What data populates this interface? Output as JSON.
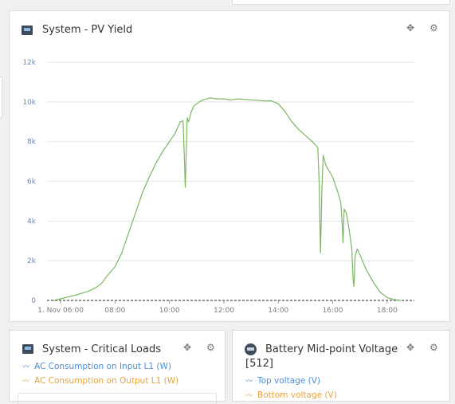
{
  "panels": {
    "pv_yield": {
      "title": "System - PV Yield"
    },
    "critical_loads": {
      "title": "System - Critical Loads",
      "legend": [
        {
          "label": "AC Consumption on Input L1 (W)",
          "color": "#4a90d9"
        },
        {
          "label": "AC Consumption on Output L1 (W)",
          "color": "#e8a33b"
        }
      ]
    },
    "battery_midpoint": {
      "title": "Battery Mid-point Voltage",
      "subtitle": "[512]",
      "legend": [
        {
          "label": "Top voltage (V)",
          "color": "#4a90d9"
        },
        {
          "label": "Bottom voltage (V)",
          "color": "#e8a33b"
        }
      ]
    }
  },
  "icons": {
    "move": "move-icon",
    "settings": "gear-icon"
  },
  "colors": {
    "line": "#7bb661",
    "grid": "#e4e4e4",
    "tick_y": "#6a87b0",
    "tick_x": "#7b7b7b"
  },
  "chart_data": {
    "type": "line",
    "title": "System - PV Yield",
    "xlabel": "",
    "ylabel": "",
    "x_unit": "hours (time of day, 1 Nov)",
    "xlim": [
      5.5,
      19.0
    ],
    "ylim": [
      0,
      12000
    ],
    "y_ticks": [
      0,
      2000,
      4000,
      6000,
      8000,
      10000,
      12000
    ],
    "y_tick_labels": [
      "0",
      "2k",
      "4k",
      "6k",
      "8k",
      "10k",
      "12k"
    ],
    "x_ticks": [
      6,
      8,
      10,
      12,
      14,
      16,
      18
    ],
    "x_tick_labels": [
      "1. Nov 06:00",
      "08:00",
      "10:00",
      "12:00",
      "14:00",
      "16:00",
      "18:00"
    ],
    "grid": true,
    "baseline": "dashed zero line",
    "series": [
      {
        "points": [
          [
            5.75,
            0
          ],
          [
            6.0,
            80
          ],
          [
            6.5,
            250
          ],
          [
            7.0,
            450
          ],
          [
            7.3,
            650
          ],
          [
            7.5,
            850
          ],
          [
            7.75,
            1300
          ],
          [
            8.0,
            1700
          ],
          [
            8.25,
            2400
          ],
          [
            8.5,
            3400
          ],
          [
            8.75,
            4400
          ],
          [
            9.0,
            5400
          ],
          [
            9.25,
            6200
          ],
          [
            9.5,
            6900
          ],
          [
            9.75,
            7500
          ],
          [
            10.0,
            8000
          ],
          [
            10.2,
            8400
          ],
          [
            10.3,
            8700
          ],
          [
            10.4,
            9000
          ],
          [
            10.5,
            9050
          ],
          [
            10.55,
            7200
          ],
          [
            10.58,
            5700
          ],
          [
            10.62,
            7500
          ],
          [
            10.65,
            9200
          ],
          [
            10.7,
            9000
          ],
          [
            10.8,
            9500
          ],
          [
            10.9,
            9800
          ],
          [
            11.0,
            9900
          ],
          [
            11.1,
            10000
          ],
          [
            11.25,
            10100
          ],
          [
            11.5,
            10200
          ],
          [
            11.75,
            10150
          ],
          [
            12.0,
            10150
          ],
          [
            12.25,
            10100
          ],
          [
            12.5,
            10150
          ],
          [
            13.0,
            10100
          ],
          [
            13.5,
            10050
          ],
          [
            13.75,
            10050
          ],
          [
            14.0,
            9900
          ],
          [
            14.25,
            9500
          ],
          [
            14.5,
            9000
          ],
          [
            14.75,
            8600
          ],
          [
            15.0,
            8300
          ],
          [
            15.25,
            8000
          ],
          [
            15.45,
            7700
          ],
          [
            15.5,
            6000
          ],
          [
            15.55,
            2400
          ],
          [
            15.6,
            5500
          ],
          [
            15.65,
            7300
          ],
          [
            15.75,
            6800
          ],
          [
            16.0,
            6200
          ],
          [
            16.2,
            5400
          ],
          [
            16.3,
            4900
          ],
          [
            16.35,
            3800
          ],
          [
            16.38,
            2900
          ],
          [
            16.42,
            4600
          ],
          [
            16.5,
            4400
          ],
          [
            16.6,
            3600
          ],
          [
            16.7,
            2600
          ],
          [
            16.75,
            1000
          ],
          [
            16.78,
            700
          ],
          [
            16.82,
            2200
          ],
          [
            16.9,
            2600
          ],
          [
            17.0,
            2300
          ],
          [
            17.25,
            1500
          ],
          [
            17.5,
            900
          ],
          [
            17.75,
            400
          ],
          [
            18.0,
            150
          ],
          [
            18.25,
            40
          ],
          [
            18.5,
            0
          ]
        ]
      }
    ]
  }
}
